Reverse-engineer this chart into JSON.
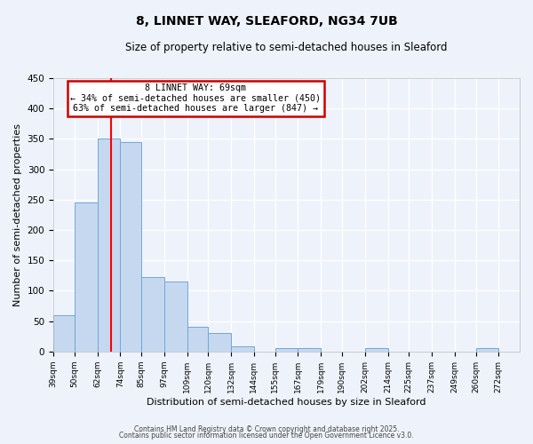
{
  "title": "8, LINNET WAY, SLEAFORD, NG34 7UB",
  "subtitle": "Size of property relative to semi-detached houses in Sleaford",
  "xlabel": "Distribution of semi-detached houses by size in Sleaford",
  "ylabel": "Number of semi-detached properties",
  "bar_labels": [
    "39sqm",
    "50sqm",
    "62sqm",
    "74sqm",
    "85sqm",
    "97sqm",
    "109sqm",
    "120sqm",
    "132sqm",
    "144sqm",
    "155sqm",
    "167sqm",
    "179sqm",
    "190sqm",
    "202sqm",
    "214sqm",
    "225sqm",
    "237sqm",
    "249sqm",
    "260sqm",
    "272sqm"
  ],
  "bar_values": [
    60,
    245,
    350,
    345,
    122,
    115,
    40,
    30,
    9,
    0,
    6,
    5,
    0,
    0,
    6,
    0,
    0,
    0,
    0,
    6,
    0
  ],
  "bar_color": "#c5d8f0",
  "bar_edge_color": "#6fa8d6",
  "ylim": [
    0,
    450
  ],
  "yticks": [
    0,
    50,
    100,
    150,
    200,
    250,
    300,
    350,
    400,
    450
  ],
  "property_line_x": 69,
  "property_line_label": "8 LINNET WAY: 69sqm",
  "annotation_smaller": "← 34% of semi-detached houses are smaller (450)",
  "annotation_larger": "63% of semi-detached houses are larger (847) →",
  "annotation_box_color": "#ffffff",
  "annotation_box_edge_color": "#cc0000",
  "footer1": "Contains HM Land Registry data © Crown copyright and database right 2025.",
  "footer2": "Contains public sector information licensed under the Open Government Licence v3.0.",
  "background_color": "#eef2fb",
  "grid_color": "#ffffff",
  "bin_edges": [
    39,
    50,
    62,
    74,
    85,
    97,
    109,
    120,
    132,
    144,
    155,
    167,
    179,
    190,
    202,
    214,
    225,
    237,
    249,
    260,
    272,
    283
  ]
}
